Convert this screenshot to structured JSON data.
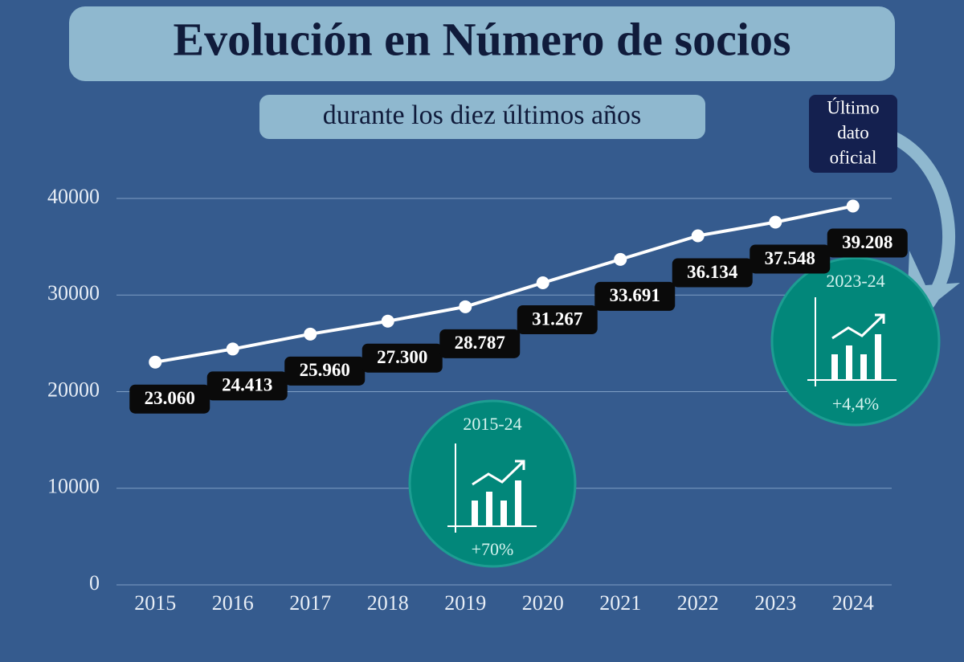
{
  "chart_data": {
    "type": "line",
    "title": "Evolución en Número de socios",
    "subtitle": "durante los diez últimos años",
    "annotation": [
      "Último",
      "dato",
      "oficial"
    ],
    "badges": [
      {
        "period": "2015-24",
        "change": "+70%"
      },
      {
        "period": "2023-24",
        "change": "+4,4%"
      }
    ],
    "categories": [
      "2015",
      "2016",
      "2017",
      "2018",
      "2019",
      "2020",
      "2021",
      "2022",
      "2023",
      "2024"
    ],
    "values": [
      23060,
      24413,
      25960,
      27300,
      28787,
      31267,
      33691,
      36134,
      37548,
      39208
    ],
    "value_labels": [
      "23.060",
      "24.413",
      "25.960",
      "27.300",
      "28.787",
      "31.267",
      "33.691",
      "36.134",
      "37.548",
      "39.208"
    ],
    "color": "#ffffff",
    "ylim": [
      0,
      40000
    ],
    "yticks": [
      0,
      10000,
      20000,
      30000,
      40000
    ],
    "grid": true
  }
}
